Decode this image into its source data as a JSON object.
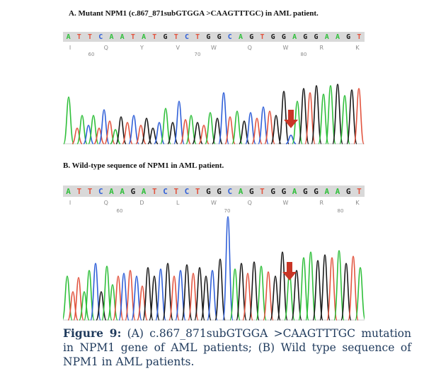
{
  "figure_a": {
    "title": "A.  Mutant NPM1 (c.867_871subGTGGA >CAAGTTTGC) in AML patient.",
    "bases": [
      "A",
      "T",
      "T",
      "C",
      "A",
      "A",
      "T",
      "A",
      "T",
      "G",
      "T",
      "C",
      "T",
      "G",
      "G",
      "C",
      "A",
      "G",
      "T",
      "G",
      "G",
      "A",
      "G",
      "G",
      "A",
      "A",
      "G",
      "T"
    ],
    "amino_acids": [
      "I",
      "Q",
      "Y",
      "V",
      "W",
      "Q",
      "W",
      "R",
      "K"
    ],
    "positions": [
      "60",
      "70",
      "80"
    ]
  },
  "figure_b": {
    "title": "B. Wild-type sequence of NPM1 in AML patient.",
    "bases": [
      "A",
      "T",
      "T",
      "C",
      "A",
      "A",
      "G",
      "A",
      "T",
      "C",
      "T",
      "C",
      "T",
      "G",
      "G",
      "C",
      "A",
      "G",
      "T",
      "G",
      "G",
      "A",
      "G",
      "G",
      "A",
      "A",
      "G",
      "T"
    ],
    "amino_acids": [
      "I",
      "Q",
      "D",
      "L",
      "W",
      "Q",
      "W",
      "R",
      "K"
    ],
    "positions": [
      "60",
      "70",
      "80"
    ]
  },
  "caption": {
    "label": "Figure 9:",
    "text": " (A) c.867_871subGTGGA >CAAGTTTGC mutation in NPM1 gene of AML patients; (B) Wild type sequence of NPM1 in AML patients."
  },
  "colors": {
    "A": "#2fbf3a",
    "T": "#e2543f",
    "C": "#2f5fd8",
    "G": "#1a1a1a",
    "arrow": "#c93526",
    "caption": "#1f3a5c",
    "basebar": "#d9d9d9"
  }
}
